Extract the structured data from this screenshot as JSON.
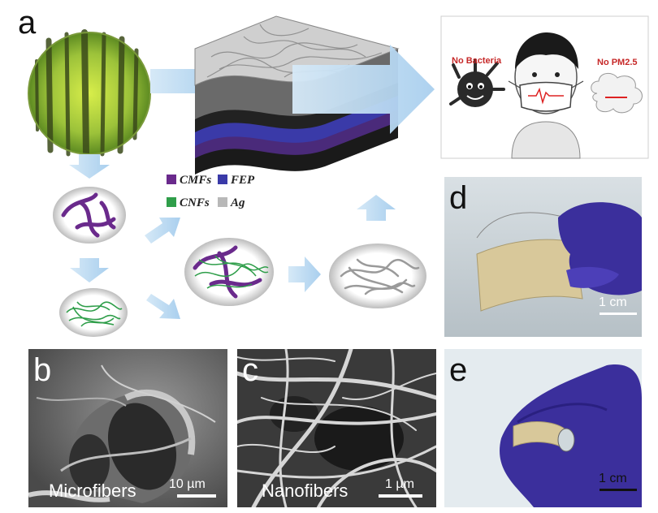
{
  "panels": {
    "a": {
      "letter": "a"
    },
    "b": {
      "letter": "b",
      "caption": "Microfibers",
      "scale": "10 µm"
    },
    "c": {
      "letter": "c",
      "caption": "Nanofibers",
      "scale": "1 µm"
    },
    "d": {
      "letter": "d",
      "scale": "1 cm"
    },
    "e": {
      "letter": "e",
      "scale": "1 cm"
    }
  },
  "legend": [
    {
      "label": "CMFs",
      "color": "#6a2a8c"
    },
    {
      "label": "FEP",
      "color": "#3a3aa8"
    },
    {
      "label": "CNFs",
      "color": "#2f9e4a"
    },
    {
      "label": "Ag",
      "color": "#b8b8b8"
    }
  ],
  "cartoon": {
    "bacteria_label": "No Bacteria",
    "pm_label": "No PM2.5"
  },
  "colors": {
    "arrow": "#b9d8f0",
    "cmf": "#6a2a8c",
    "cnf": "#2f9e4a",
    "glove": "#3b2f9c",
    "paper": "#d8c89a",
    "sem_bg": "#5a5a5a"
  }
}
